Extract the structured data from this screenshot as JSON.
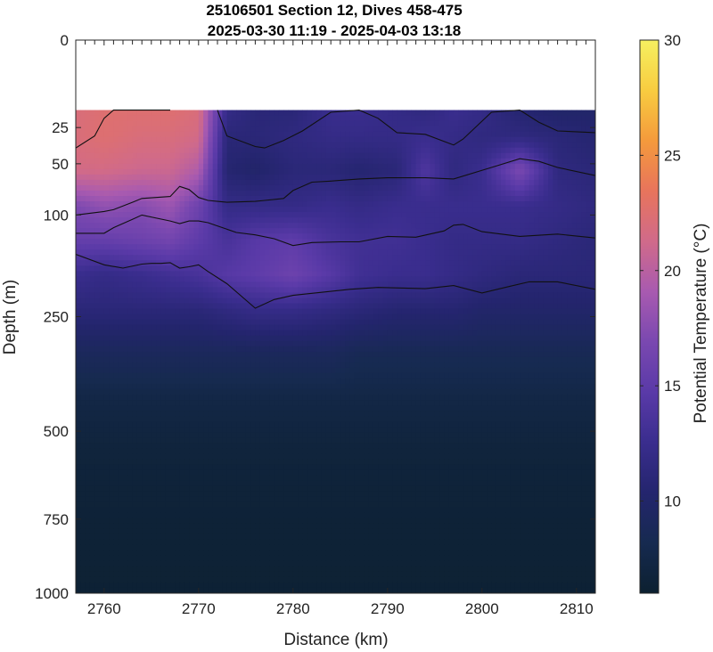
{
  "chart_data": {
    "type": "heatmap",
    "title": [
      "25106501 Section 12, Dives 458-475",
      "2025-03-30 11:19 - 2025-04-03 13:18"
    ],
    "xlabel": "Distance (km)",
    "ylabel": "Depth (m)",
    "colorbar_label": "Potential Temperature (°C)",
    "xlim": [
      2757,
      2812
    ],
    "ylim": [
      0,
      1000
    ],
    "y_scale": "square-root",
    "clim": [
      6,
      30
    ],
    "x_ticks": [
      2760,
      2770,
      2780,
      2790,
      2800,
      2810
    ],
    "y_ticks": [
      0,
      25,
      50,
      100,
      250,
      500,
      750,
      1000
    ],
    "colorbar_ticks": [
      10,
      15,
      20,
      25,
      30
    ],
    "colormap": [
      "#0c2030",
      "#162a50",
      "#24256e",
      "#3a2d8e",
      "#5a3aa8",
      "#7a48b0",
      "#a85ab0",
      "#d06a8a",
      "#e8745c",
      "#f49a3c",
      "#f8cc40",
      "#f6f060"
    ],
    "grid": false,
    "data_top_depth_m": 16,
    "distances_km": [
      2757,
      2760,
      2764,
      2767,
      2770,
      2773,
      2776,
      2780,
      2784,
      2787,
      2791,
      2794,
      2797,
      2800,
      2804,
      2808,
      2812
    ],
    "depths_m": [
      16,
      30,
      55,
      90,
      130,
      180,
      240,
      320,
      420,
      560,
      750,
      1000
    ],
    "temperature_c": [
      [
        22.0,
        22.5,
        22.5,
        22.5,
        22.0,
        12.0,
        11.0,
        11.0,
        12.5,
        12.5,
        12.0,
        11.5,
        12.5,
        12.0,
        10.5,
        10.0,
        10.0
      ],
      [
        22.0,
        22.5,
        22.0,
        22.0,
        21.5,
        11.0,
        11.0,
        11.5,
        12.0,
        12.0,
        12.0,
        12.5,
        12.0,
        11.5,
        11.5,
        11.0,
        10.5
      ],
      [
        21.5,
        21.5,
        21.0,
        21.0,
        19.5,
        10.5,
        10.0,
        11.0,
        11.0,
        10.5,
        11.0,
        14.0,
        11.5,
        12.5,
        17.0,
        11.5,
        11.0
      ],
      [
        17.0,
        18.0,
        17.5,
        18.5,
        16.0,
        12.0,
        12.0,
        12.0,
        12.5,
        12.0,
        12.5,
        12.5,
        12.5,
        12.5,
        12.5,
        12.0,
        11.5
      ],
      [
        15.5,
        15.5,
        16.0,
        16.5,
        15.0,
        13.5,
        14.5,
        15.0,
        13.5,
        13.0,
        13.0,
        12.5,
        12.0,
        12.0,
        12.0,
        11.5,
        11.0
      ],
      [
        12.5,
        12.0,
        12.5,
        13.0,
        13.5,
        14.5,
        15.0,
        16.0,
        14.5,
        13.0,
        12.5,
        12.5,
        12.0,
        11.5,
        11.0,
        11.0,
        11.0
      ],
      [
        11.0,
        11.0,
        11.0,
        11.0,
        11.0,
        11.5,
        12.0,
        12.0,
        11.5,
        11.0,
        10.5,
        10.5,
        10.5,
        10.0,
        10.0,
        10.0,
        10.0
      ],
      [
        9.0,
        9.0,
        9.0,
        9.0,
        9.0,
        9.0,
        9.0,
        9.0,
        9.0,
        8.5,
        8.5,
        8.5,
        8.5,
        8.5,
        8.5,
        8.5,
        8.5
      ],
      [
        7.5,
        7.5,
        7.5,
        7.5,
        7.5,
        7.5,
        7.5,
        7.5,
        7.5,
        7.5,
        7.5,
        7.5,
        7.5,
        7.5,
        7.5,
        7.5,
        7.5
      ],
      [
        6.8,
        6.8,
        6.8,
        6.8,
        6.8,
        6.8,
        6.8,
        6.8,
        6.8,
        6.8,
        6.8,
        6.8,
        6.8,
        6.8,
        6.8,
        6.8,
        6.8
      ],
      [
        6.5,
        6.5,
        6.5,
        6.5,
        6.5,
        6.5,
        6.5,
        6.5,
        6.5,
        6.5,
        6.5,
        6.5,
        6.5,
        6.5,
        6.5,
        6.5,
        6.5
      ],
      [
        6.3,
        6.3,
        6.3,
        6.3,
        6.3,
        6.3,
        6.3,
        6.3,
        6.3,
        6.3,
        6.3,
        6.3,
        6.3,
        6.3,
        6.3,
        6.3,
        6.3
      ]
    ],
    "contour_lines": [
      [
        [
          2757,
          38
        ],
        [
          2759,
          30
        ],
        [
          2760,
          20
        ],
        [
          2761,
          16
        ],
        [
          2763,
          16
        ],
        [
          2764,
          16
        ],
        [
          2766,
          16
        ],
        [
          2767,
          16
        ]
      ],
      [
        [
          2772,
          16
        ],
        [
          2773,
          30
        ],
        [
          2776,
          37
        ],
        [
          2777,
          38
        ],
        [
          2779,
          33
        ],
        [
          2781,
          27
        ],
        [
          2784,
          17
        ],
        [
          2787,
          16
        ],
        [
          2789,
          20
        ],
        [
          2791,
          28
        ],
        [
          2794,
          29
        ],
        [
          2797,
          36
        ],
        [
          2798,
          32
        ],
        [
          2801,
          17
        ],
        [
          2804,
          16
        ],
        [
          2806,
          22
        ],
        [
          2808,
          27
        ],
        [
          2812,
          28
        ]
      ],
      [
        [
          2757,
          100
        ],
        [
          2760,
          96
        ],
        [
          2761,
          94
        ],
        [
          2763,
          86
        ],
        [
          2764,
          82
        ],
        [
          2767,
          80
        ],
        [
          2768,
          70
        ],
        [
          2769,
          73
        ],
        [
          2770,
          81
        ],
        [
          2771,
          84
        ],
        [
          2772,
          85
        ],
        [
          2773,
          86
        ],
        [
          2776,
          85
        ],
        [
          2777,
          84
        ],
        [
          2779,
          82
        ],
        [
          2780,
          74
        ],
        [
          2782,
          66
        ],
        [
          2784,
          65
        ],
        [
          2787,
          63
        ],
        [
          2790,
          62
        ],
        [
          2794,
          62
        ],
        [
          2797,
          63
        ],
        [
          2801,
          53
        ],
        [
          2804,
          46
        ],
        [
          2806,
          48
        ],
        [
          2808,
          53
        ],
        [
          2812,
          60
        ]
      ],
      [
        [
          2757,
          122
        ],
        [
          2760,
          122
        ],
        [
          2761,
          115
        ],
        [
          2763,
          105
        ],
        [
          2764,
          100
        ],
        [
          2767,
          107
        ],
        [
          2768,
          110
        ],
        [
          2769,
          107
        ],
        [
          2770,
          107
        ],
        [
          2771,
          109
        ],
        [
          2774,
          121
        ],
        [
          2776,
          124
        ],
        [
          2778,
          129
        ],
        [
          2780,
          138
        ],
        [
          2782,
          134
        ],
        [
          2785,
          133
        ],
        [
          2787,
          133
        ],
        [
          2790,
          126
        ],
        [
          2793,
          127
        ],
        [
          2796,
          119
        ],
        [
          2797,
          112
        ],
        [
          2798,
          111
        ],
        [
          2800,
          120
        ],
        [
          2804,
          126
        ],
        [
          2808,
          123
        ],
        [
          2812,
          128
        ]
      ],
      [
        [
          2757,
          150
        ],
        [
          2760,
          165
        ],
        [
          2762,
          170
        ],
        [
          2764,
          164
        ],
        [
          2765,
          163
        ],
        [
          2766,
          163
        ],
        [
          2767,
          162
        ],
        [
          2768,
          170
        ],
        [
          2769,
          168
        ],
        [
          2770,
          165
        ],
        [
          2771,
          175
        ],
        [
          2773,
          194
        ],
        [
          2776,
          235
        ],
        [
          2778,
          220
        ],
        [
          2780,
          213
        ],
        [
          2783,
          208
        ],
        [
          2786,
          203
        ],
        [
          2789,
          200
        ],
        [
          2794,
          202
        ],
        [
          2797,
          197
        ],
        [
          2800,
          209
        ],
        [
          2803,
          198
        ],
        [
          2805,
          191
        ],
        [
          2808,
          191
        ],
        [
          2812,
          203
        ]
      ]
    ]
  }
}
